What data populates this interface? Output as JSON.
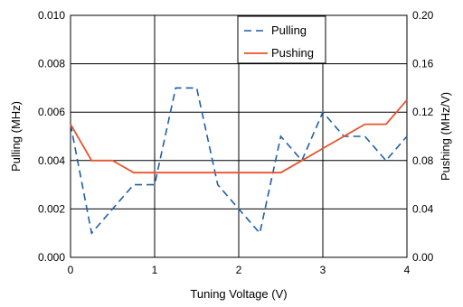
{
  "chart_data": {
    "type": "line",
    "title": "",
    "xlabel": "Tuning Voltage (V)",
    "ylabel": "Pulling (MHz)",
    "y2label": "Pushing (MHz/V)",
    "xlim": [
      0,
      4
    ],
    "ylim": [
      0,
      0.01
    ],
    "y2lim": [
      0,
      0.2
    ],
    "x_ticks": [
      "0",
      "1",
      "2",
      "3",
      "4"
    ],
    "y_ticks": [
      "0.000",
      "0.002",
      "0.004",
      "0.006",
      "0.008",
      "0.010"
    ],
    "y2_ticks": [
      "0.00",
      "0.04",
      "0.08",
      "0.12",
      "0.16",
      "0.20"
    ],
    "grid": true,
    "legend_position": "top-center",
    "series": [
      {
        "name": "Pulling",
        "axis": "left",
        "style": "dashed",
        "color": "#1f5fa8",
        "x": [
          0,
          0.25,
          0.5,
          0.75,
          1,
          1.25,
          1.5,
          1.75,
          2,
          2.25,
          2.5,
          2.75,
          3,
          3.25,
          3.5,
          3.75,
          4
        ],
        "y": [
          0.0055,
          0.001,
          0.002,
          0.003,
          0.003,
          0.007,
          0.007,
          0.003,
          0.002,
          0.001,
          0.005,
          0.004,
          0.006,
          0.005,
          0.005,
          0.004,
          0.005
        ]
      },
      {
        "name": "Pushing",
        "axis": "right",
        "style": "solid",
        "color": "#e8542e",
        "x": [
          0,
          0.25,
          0.5,
          0.75,
          1,
          1.25,
          1.5,
          1.75,
          2,
          2.25,
          2.5,
          2.75,
          3,
          3.25,
          3.5,
          3.75,
          4
        ],
        "y": [
          0.11,
          0.08,
          0.08,
          0.07,
          0.07,
          0.07,
          0.07,
          0.07,
          0.07,
          0.07,
          0.07,
          0.08,
          0.09,
          0.1,
          0.11,
          0.11,
          0.13
        ]
      }
    ]
  }
}
